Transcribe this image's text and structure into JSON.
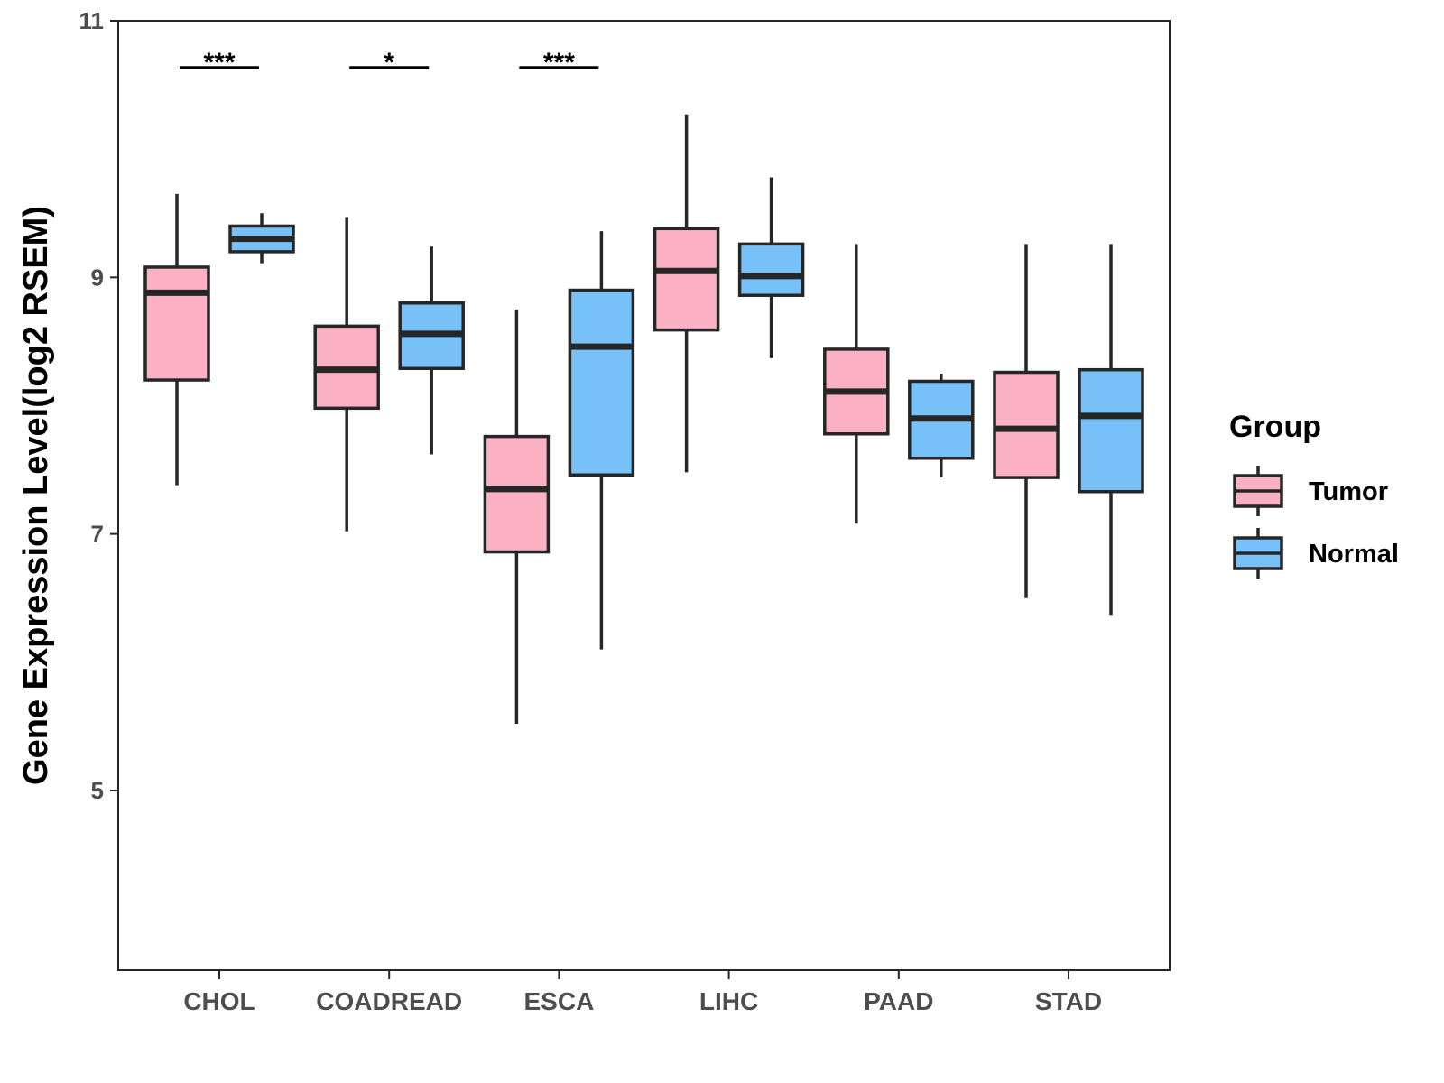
{
  "chart_data": {
    "type": "boxplot",
    "title": "",
    "xlabel": "",
    "ylabel": "Gene Expression Level(log2 RSEM)",
    "ylim": [
      3.6,
      11
    ],
    "yticks": [
      5,
      7,
      9,
      11
    ],
    "grid": false,
    "categories": [
      "CHOL",
      "COADREAD",
      "ESCA",
      "LIHC",
      "PAAD",
      "STAD"
    ],
    "legend": {
      "title": "Group",
      "position": "right",
      "entries": [
        "Tumor",
        "Normal"
      ]
    },
    "series": [
      {
        "name": "Tumor",
        "color": "#fbb1c3",
        "boxes": [
          {
            "whisker_low": 7.38,
            "q1": 8.2,
            "median": 8.88,
            "q3": 9.08,
            "whisker_high": 9.65
          },
          {
            "whisker_low": 7.02,
            "q1": 7.98,
            "median": 8.28,
            "q3": 8.62,
            "whisker_high": 9.47
          },
          {
            "whisker_low": 5.52,
            "q1": 6.86,
            "median": 7.35,
            "q3": 7.76,
            "whisker_high": 8.75
          },
          {
            "whisker_low": 7.48,
            "q1": 8.59,
            "median": 9.05,
            "q3": 9.38,
            "whisker_high": 10.27
          },
          {
            "whisker_low": 7.08,
            "q1": 7.78,
            "median": 8.11,
            "q3": 8.44,
            "whisker_high": 9.26
          },
          {
            "whisker_low": 6.5,
            "q1": 7.44,
            "median": 7.82,
            "q3": 8.26,
            "whisker_high": 9.26
          }
        ]
      },
      {
        "name": "Normal",
        "color": "#77c0f8",
        "boxes": [
          {
            "whisker_low": 9.11,
            "q1": 9.2,
            "median": 9.3,
            "q3": 9.4,
            "whisker_high": 9.5
          },
          {
            "whisker_low": 7.62,
            "q1": 8.29,
            "median": 8.56,
            "q3": 8.8,
            "whisker_high": 9.24
          },
          {
            "whisker_low": 6.1,
            "q1": 7.46,
            "median": 8.46,
            "q3": 8.9,
            "whisker_high": 9.36
          },
          {
            "whisker_low": 8.37,
            "q1": 8.86,
            "median": 9.01,
            "q3": 9.26,
            "whisker_high": 9.78
          },
          {
            "whisker_low": 7.44,
            "q1": 7.59,
            "median": 7.9,
            "q3": 8.19,
            "whisker_high": 8.25
          },
          {
            "whisker_low": 6.37,
            "q1": 7.33,
            "median": 7.92,
            "q3": 8.28,
            "whisker_high": 9.26
          }
        ]
      }
    ],
    "annotations": [
      {
        "category": "CHOL",
        "label": "***"
      },
      {
        "category": "COADREAD",
        "label": "*"
      },
      {
        "category": "ESCA",
        "label": "***"
      }
    ]
  }
}
